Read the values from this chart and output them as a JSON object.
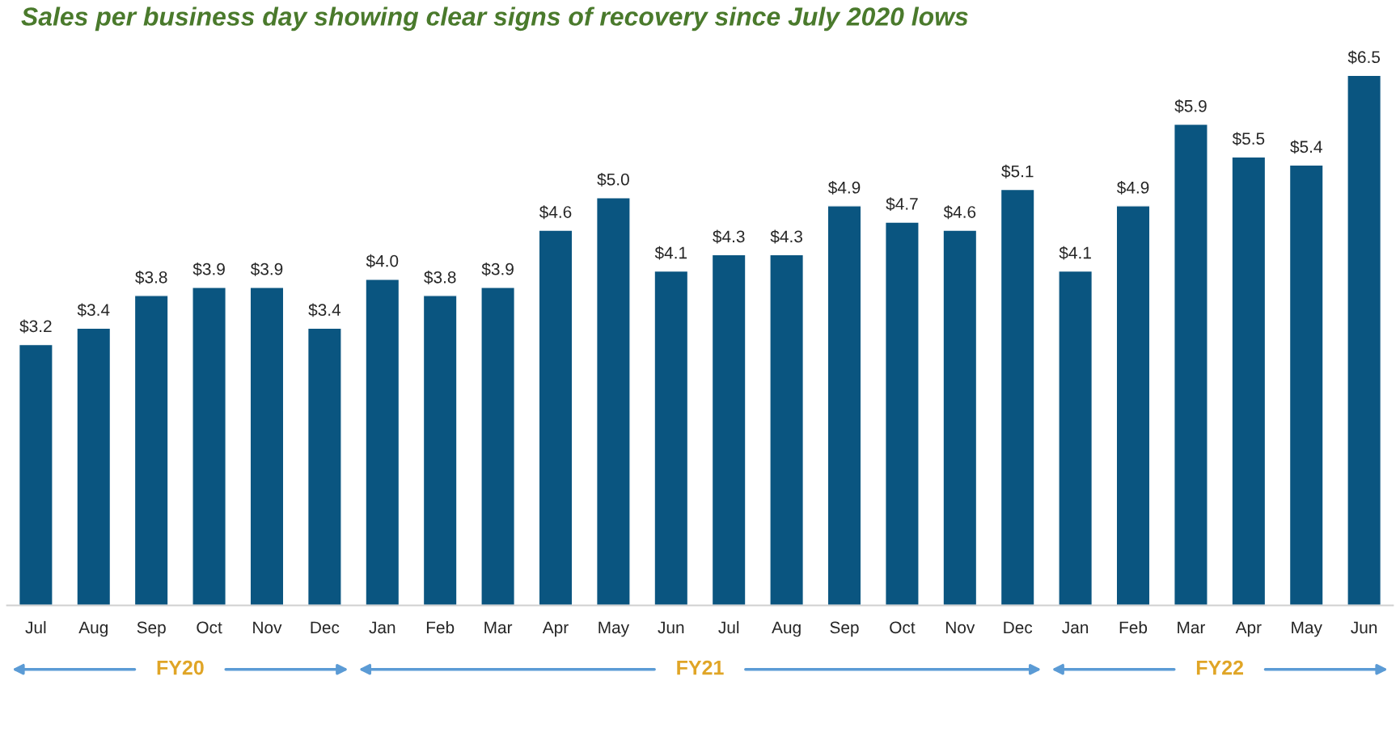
{
  "chart_data": {
    "type": "bar",
    "title": "Sales per business day showing clear signs of recovery since July 2020 lows",
    "categories": [
      "Jul",
      "Aug",
      "Sep",
      "Oct",
      "Nov",
      "Dec",
      "Jan",
      "Feb",
      "Mar",
      "Apr",
      "May",
      "Jun",
      "Jul",
      "Aug",
      "Sep",
      "Oct",
      "Nov",
      "Dec",
      "Jan",
      "Feb",
      "Mar",
      "Apr",
      "May",
      "Jun"
    ],
    "values": [
      3.2,
      3.4,
      3.8,
      3.9,
      3.9,
      3.4,
      4.0,
      3.8,
      3.9,
      4.6,
      5.0,
      4.1,
      4.3,
      4.3,
      4.9,
      4.7,
      4.6,
      5.1,
      4.1,
      4.9,
      5.9,
      5.5,
      5.4,
      6.5
    ],
    "value_labels": [
      "$3.2",
      "$3.4",
      "$3.8",
      "$3.9",
      "$3.9",
      "$3.4",
      "$4.0",
      "$3.8",
      "$3.9",
      "$4.6",
      "$5.0",
      "$4.1",
      "$4.3",
      "$4.3",
      "$4.9",
      "$4.7",
      "$4.6",
      "$5.1",
      "$4.1",
      "$4.9",
      "$5.9",
      "$5.5",
      "$5.4",
      "$6.5"
    ],
    "color": "#0a5580",
    "annotations": [
      "FY20",
      "FY21",
      "FY22"
    ],
    "grid": false,
    "legend": false
  }
}
